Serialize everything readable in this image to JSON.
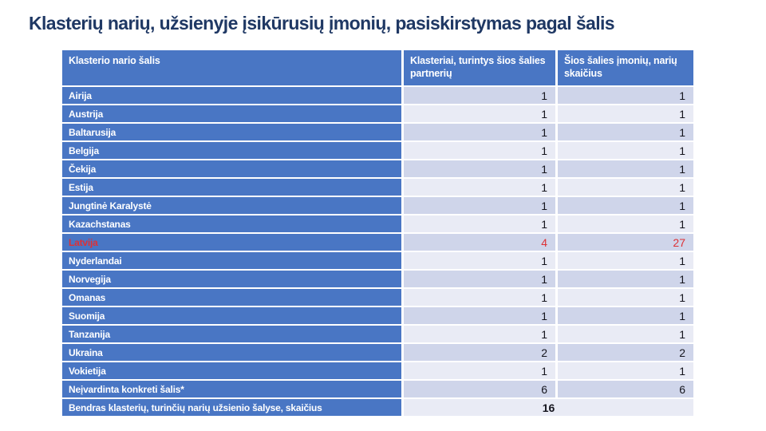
{
  "slide": {
    "title": "Klasterių narių, užsienyje įsikūrusių įmonių, pasiskirstymas pagal šalis"
  },
  "colors": {
    "header_blue": "#4976C4",
    "band_dark": "#CFD5EA",
    "band_light": "#E9EBF5",
    "title_navy": "#1F3864",
    "highlight_red": "#DD3136",
    "number_ink": "#15151E",
    "page_bg": "#FFFFFF"
  },
  "table": {
    "columns": [
      {
        "label": "Klasterio nario šalis"
      },
      {
        "label": "Klasteriai, turintys šios šalies partnerių"
      },
      {
        "label": "Šios šalies įmonių, narių skaičius"
      }
    ],
    "rows": [
      {
        "country": "Airija",
        "clusters": "1",
        "companies": "1"
      },
      {
        "country": "Austrija",
        "clusters": "1",
        "companies": "1"
      },
      {
        "country": "Baltarusija",
        "clusters": "1",
        "companies": "1"
      },
      {
        "country": "Belgija",
        "clusters": "1",
        "companies": "1"
      },
      {
        "country": "Čekija",
        "clusters": "1",
        "companies": "1"
      },
      {
        "country": "Estija",
        "clusters": "1",
        "companies": "1"
      },
      {
        "country": "Jungtinė Karalystė",
        "clusters": "1",
        "companies": "1"
      },
      {
        "country": "Kazachstanas",
        "clusters": "1",
        "companies": "1"
      },
      {
        "country": "Latvija",
        "clusters": "4",
        "companies": "27",
        "highlight": true
      },
      {
        "country": "Nyderlandai",
        "clusters": "1",
        "companies": "1"
      },
      {
        "country": "Norvegija",
        "clusters": "1",
        "companies": "1"
      },
      {
        "country": "Omanas",
        "clusters": "1",
        "companies": "1"
      },
      {
        "country": "Suomija",
        "clusters": "1",
        "companies": "1"
      },
      {
        "country": "Tanzanija",
        "clusters": "1",
        "companies": "1"
      },
      {
        "country": "Ukraina",
        "clusters": "2",
        "companies": "2"
      },
      {
        "country": "Vokietija",
        "clusters": "1",
        "companies": "1"
      },
      {
        "country": "Neįvardinta konkreti šalis*",
        "clusters": "6",
        "companies": "6"
      }
    ],
    "total_row": {
      "label": "Bendras klasterių, turinčių narių užsienio šalyse, skaičius",
      "value": "16"
    }
  }
}
